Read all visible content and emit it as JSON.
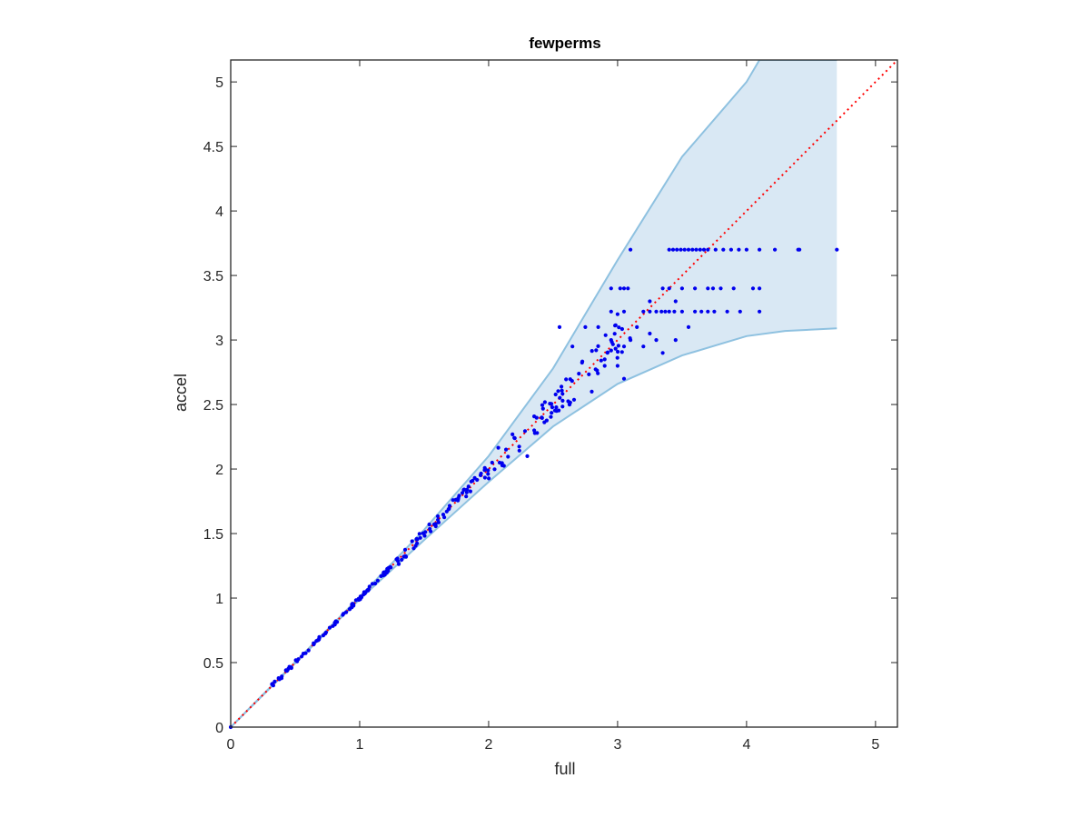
{
  "chart_data": {
    "type": "scatter",
    "title": "fewperms",
    "xlabel": "full",
    "ylabel": "accel",
    "xlim": [
      0,
      5.17
    ],
    "ylim": [
      0,
      5.17
    ],
    "xticks": [
      0,
      1,
      2,
      3,
      4,
      5
    ],
    "xtick_labels": [
      "0",
      "1",
      "2",
      "3",
      "4",
      "5"
    ],
    "yticks": [
      0,
      0.5,
      1,
      1.5,
      2,
      2.5,
      3,
      3.5,
      4,
      4.5,
      5
    ],
    "ytick_labels": [
      "0",
      "0.5",
      "1",
      "1.5",
      "2",
      "2.5",
      "3",
      "3.5",
      "4",
      "4.5",
      "5"
    ],
    "grid": false,
    "colors": {
      "points": "#0000ee",
      "band_fill": "#d9e8f4",
      "band_edge": "#8ec1e0",
      "diagonal": "#ff0000",
      "axes": "#262626"
    },
    "band": {
      "upper": [
        [
          0,
          0
        ],
        [
          1,
          1.01
        ],
        [
          1.5,
          1.53
        ],
        [
          2,
          2.1
        ],
        [
          2.5,
          2.78
        ],
        [
          3,
          3.62
        ],
        [
          3.5,
          4.42
        ],
        [
          4,
          5.0
        ],
        [
          4.1,
          5.17
        ],
        [
          4.7,
          5.17
        ]
      ],
      "lower": [
        [
          0,
          0
        ],
        [
          1,
          0.99
        ],
        [
          1.5,
          1.45
        ],
        [
          2,
          1.9
        ],
        [
          2.5,
          2.33
        ],
        [
          3,
          2.66
        ],
        [
          3.5,
          2.88
        ],
        [
          4,
          3.03
        ],
        [
          4.3,
          3.07
        ],
        [
          4.7,
          3.09
        ]
      ]
    },
    "reference_line": {
      "style": "dotted",
      "from": [
        0,
        0
      ],
      "to": [
        5.17,
        5.17
      ]
    },
    "points": {
      "diagonal_ranges": [
        {
          "x_from": 0.32,
          "x_to": 1.3,
          "n": 90,
          "spread": 0.015
        },
        {
          "x_from": 1.3,
          "x_to": 2.0,
          "n": 60,
          "spread": 0.04
        },
        {
          "x_from": 2.0,
          "x_to": 2.6,
          "n": 45,
          "spread": 0.1
        },
        {
          "x_from": 2.6,
          "x_to": 3.1,
          "n": 35,
          "spread": 0.14
        }
      ],
      "explicit": [
        [
          0.0,
          0.0
        ],
        [
          2.3,
          2.1
        ],
        [
          2.55,
          3.1
        ],
        [
          2.75,
          3.1
        ],
        [
          2.65,
          2.95
        ],
        [
          2.85,
          3.1
        ],
        [
          2.9,
          2.8
        ],
        [
          2.95,
          3.0
        ],
        [
          3.05,
          2.95
        ],
        [
          3.1,
          3.0
        ],
        [
          3.0,
          3.2
        ],
        [
          3.15,
          3.1
        ],
        [
          3.2,
          2.95
        ],
        [
          3.25,
          3.05
        ],
        [
          3.3,
          3.0
        ],
        [
          3.35,
          2.9
        ],
        [
          3.45,
          3.0
        ],
        [
          3.55,
          3.1
        ],
        [
          3.25,
          3.3
        ],
        [
          3.45,
          3.3
        ],
        [
          2.9,
          2.85
        ],
        [
          3.0,
          2.8
        ],
        [
          3.05,
          2.7
        ],
        [
          2.8,
          2.6
        ]
      ],
      "rows": [
        {
          "y": 3.7,
          "x": [
            3.1,
            3.4,
            3.43,
            3.46,
            3.49,
            3.52,
            3.55,
            3.58,
            3.61,
            3.64,
            3.67,
            3.7,
            3.76,
            3.82,
            3.88,
            3.94,
            4.0,
            4.1,
            4.22,
            4.4,
            4.41,
            4.7
          ]
        },
        {
          "y": 3.4,
          "x": [
            2.95,
            3.02,
            3.05,
            3.08,
            3.35,
            3.4,
            3.5,
            3.6,
            3.7,
            3.74,
            3.8,
            3.9,
            4.05,
            4.1
          ]
        },
        {
          "y": 3.22,
          "x": [
            2.95,
            3.05,
            3.2,
            3.25,
            3.3,
            3.34,
            3.37,
            3.4,
            3.44,
            3.5,
            3.6,
            3.65,
            3.7,
            3.75,
            3.85,
            3.95,
            4.1
          ]
        }
      ]
    }
  }
}
